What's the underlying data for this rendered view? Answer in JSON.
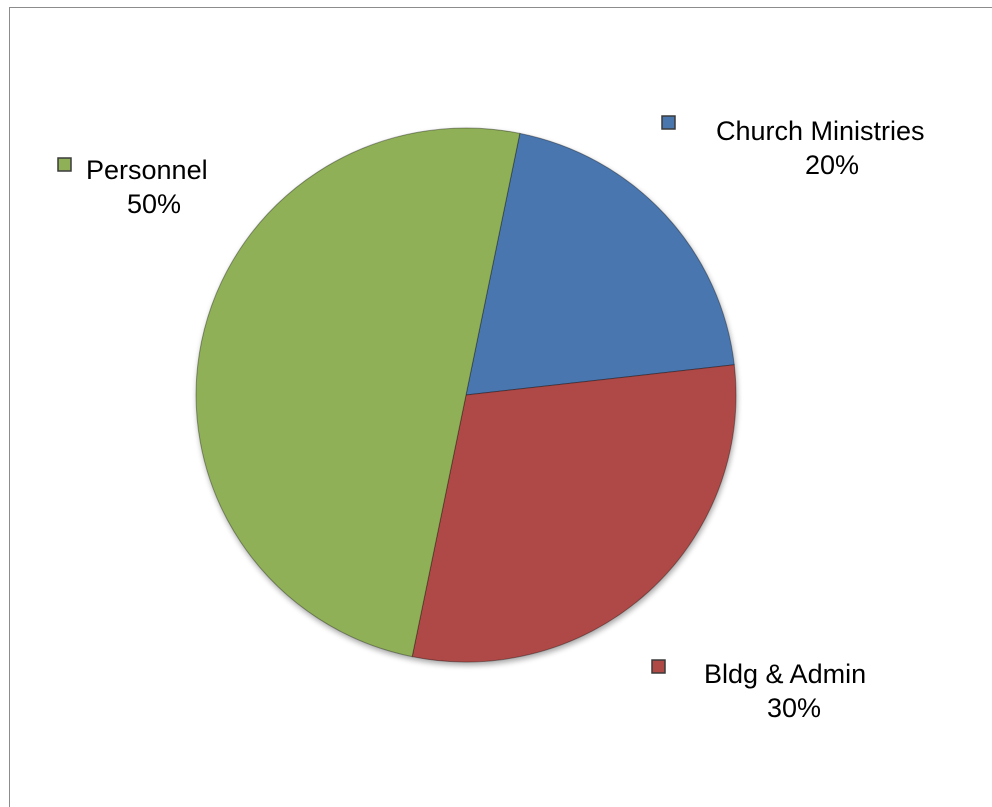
{
  "chart_data": {
    "type": "pie",
    "title": "",
    "slices": [
      {
        "category": "Church Ministries",
        "value": 20,
        "percent_label": "20%",
        "color": "#4a76ae"
      },
      {
        "category": "Bldg & Admin",
        "value": 30,
        "percent_label": "30%",
        "color": "#ae4946"
      },
      {
        "category": "Personnel",
        "value": 50,
        "percent_label": "50%",
        "color": "#8fb057"
      }
    ],
    "legend": "none",
    "data_labels": "category-and-percent-with-legend-key"
  }
}
